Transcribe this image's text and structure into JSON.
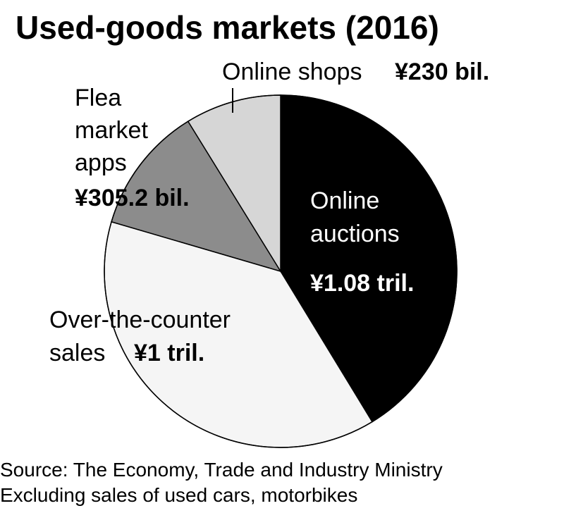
{
  "chart_data": {
    "type": "pie",
    "title": "Used-goods markets (2016)",
    "unit": "¥ billion",
    "slices": [
      {
        "label_lines": [
          "Online",
          "auctions"
        ],
        "value_label": "¥1.08 tril.",
        "value": 1080,
        "color": "#000000",
        "text_color": "#ffffff"
      },
      {
        "label_lines": [
          "Over-the-counter",
          "sales"
        ],
        "value_label": "¥1 tril.",
        "value": 1000,
        "color": "#f5f5f5",
        "text_color": "#000000"
      },
      {
        "label_lines": [
          "Flea",
          "market",
          "apps"
        ],
        "value_label": "¥305.2 bil.",
        "value": 305.2,
        "color": "#8c8c8c",
        "text_color": "#000000"
      },
      {
        "label_lines": [
          "Online shops"
        ],
        "value_label": "¥230 bil.",
        "value": 230,
        "color": "#d6d6d6",
        "text_color": "#000000"
      }
    ],
    "start_angle_deg": 0,
    "direction": "clockwise"
  },
  "footnotes": [
    "Source: The Economy, Trade and Industry Ministry",
    "Excluding sales of used cars, motorbikes"
  ]
}
